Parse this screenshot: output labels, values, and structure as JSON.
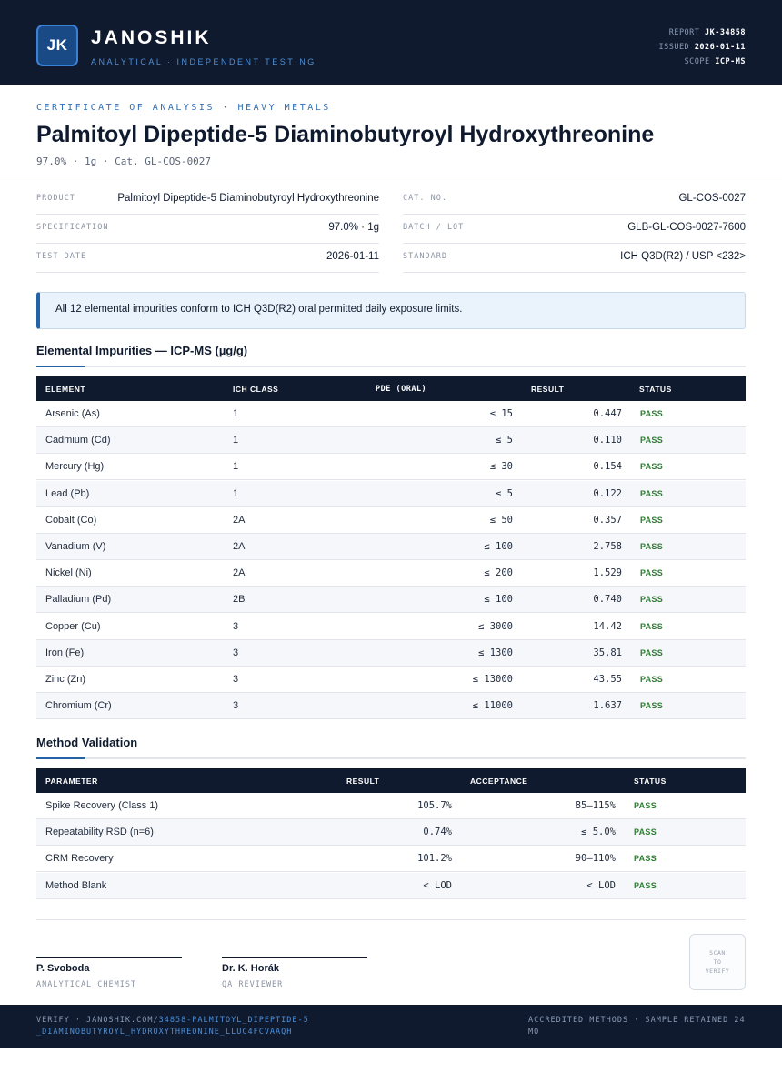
{
  "header": {
    "logo": "JK",
    "brand": "JANOSHIK",
    "tagline": "ANALYTICAL · INDEPENDENT TESTING",
    "report_label": "REPORT",
    "report_value": "JK-34858",
    "issued_label": "ISSUED",
    "issued_value": "2026-01-11",
    "scope_label": "SCOPE",
    "scope_value": "ICP-MS"
  },
  "doc": {
    "kicker": "CERTIFICATE OF ANALYSIS · HEAVY METALS",
    "title": "Palmitoyl Dipeptide-5 Diaminobutyroyl Hydroxythreonine",
    "subline": "97.0% · 1g  ·  Cat. GL-COS-0027"
  },
  "info": {
    "product_label": "PRODUCT",
    "product_value": "Palmitoyl Dipeptide-5 Diaminobutyroyl Hydroxythreonine",
    "spec_label": "SPECIFICATION",
    "spec_value": "97.0% · 1g",
    "date_label": "TEST DATE",
    "date_value": "2026-01-11",
    "cat_label": "CAT. NO.",
    "cat_value": "GL-COS-0027",
    "batch_label": "BATCH / LOT",
    "batch_value": "GLB-GL-COS-0027-7600",
    "standard_label": "STANDARD",
    "standard_value": "ICH Q3D(R2) / USP <232>"
  },
  "callout": "All 12 elemental impurities conform to ICH Q3D(R2) oral permitted daily exposure limits.",
  "impurities": {
    "title": "Elemental Impurities — ICP-MS (µg/g)",
    "headers": {
      "element": "ELEMENT",
      "class": "ICH CLASS",
      "pde": "PDE (ORAL)",
      "result": "RESULT",
      "status": "STATUS"
    },
    "rows": [
      {
        "element": "Arsenic (As)",
        "class": "1",
        "pde": "≤ 15",
        "result": "0.447",
        "status": "PASS"
      },
      {
        "element": "Cadmium (Cd)",
        "class": "1",
        "pde": "≤ 5",
        "result": "0.110",
        "status": "PASS"
      },
      {
        "element": "Mercury (Hg)",
        "class": "1",
        "pde": "≤ 30",
        "result": "0.154",
        "status": "PASS"
      },
      {
        "element": "Lead (Pb)",
        "class": "1",
        "pde": "≤ 5",
        "result": "0.122",
        "status": "PASS"
      },
      {
        "element": "Cobalt (Co)",
        "class": "2A",
        "pde": "≤ 50",
        "result": "0.357",
        "status": "PASS"
      },
      {
        "element": "Vanadium (V)",
        "class": "2A",
        "pde": "≤ 100",
        "result": "2.758",
        "status": "PASS"
      },
      {
        "element": "Nickel (Ni)",
        "class": "2A",
        "pde": "≤ 200",
        "result": "1.529",
        "status": "PASS"
      },
      {
        "element": "Palladium (Pd)",
        "class": "2B",
        "pde": "≤ 100",
        "result": "0.740",
        "status": "PASS"
      },
      {
        "element": "Copper (Cu)",
        "class": "3",
        "pde": "≤ 3000",
        "result": "14.42",
        "status": "PASS"
      },
      {
        "element": "Iron (Fe)",
        "class": "3",
        "pde": "≤ 1300",
        "result": "35.81",
        "status": "PASS"
      },
      {
        "element": "Zinc (Zn)",
        "class": "3",
        "pde": "≤ 13000",
        "result": "43.55",
        "status": "PASS"
      },
      {
        "element": "Chromium (Cr)",
        "class": "3",
        "pde": "≤ 11000",
        "result": "1.637",
        "status": "PASS"
      }
    ]
  },
  "validation": {
    "title": "Method Validation",
    "headers": {
      "parameter": "PARAMETER",
      "result": "RESULT",
      "acceptance": "ACCEPTANCE",
      "status": "STATUS"
    },
    "rows": [
      {
        "parameter": "Spike Recovery (Class 1)",
        "result": "105.7%",
        "acceptance": "85–115%",
        "status": "PASS"
      },
      {
        "parameter": "Repeatability RSD (n=6)",
        "result": "0.74%",
        "acceptance": "≤ 5.0%",
        "status": "PASS"
      },
      {
        "parameter": "CRM Recovery",
        "result": "101.2%",
        "acceptance": "90–110%",
        "status": "PASS"
      },
      {
        "parameter": "Method Blank",
        "result": "< LOD",
        "acceptance": "< LOD",
        "status": "PASS"
      }
    ]
  },
  "signatures": [
    {
      "name": "P. Svoboda",
      "role": "ANALYTICAL CHEMIST"
    },
    {
      "name": "Dr. K. Horák",
      "role": "QA REVIEWER"
    }
  ],
  "qr_text": "SCAN TO VERIFY",
  "footer": {
    "verify_prefix": "VERIFY · JANOSHIK.COM/",
    "verify_link": "34858-PALMITOYL_DIPEPTIDE-5_DIAMINOBUTYROYL_HYDROXYTHREONINE_LLUC4FCVAAQH",
    "right": "ACCREDITED METHODS · SAMPLE RETAINED 24 MO"
  },
  "colors": {
    "navy": "#0f1a2e",
    "accent": "#2563a8",
    "pass": "#2e7d32",
    "callout_bg": "#eaf3fc"
  }
}
